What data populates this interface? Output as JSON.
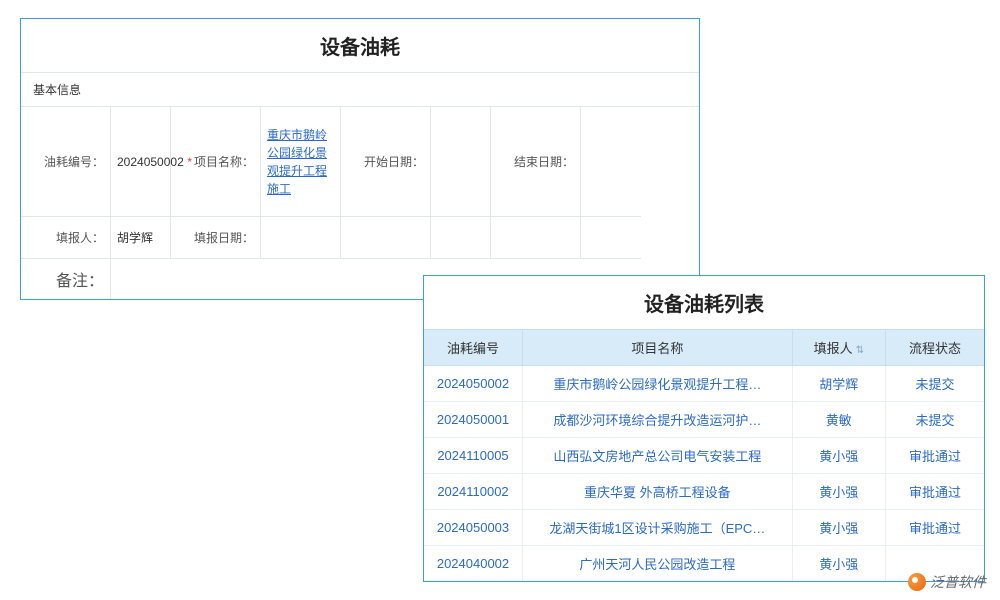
{
  "form": {
    "title": "设备油耗",
    "section_title": "基本信息",
    "fields": {
      "fuel_id_label": "油耗编号：",
      "fuel_id_value": "2024050002",
      "project_name_label": "项目名称：",
      "project_name_value": "重庆市鹅岭公园绿化景观提升工程施工",
      "start_date_label": "开始日期：",
      "start_date_value": "",
      "end_date_label": "结束日期：",
      "end_date_value": "",
      "reporter_label": "填报人：",
      "reporter_value": "胡学辉",
      "report_date_label": "填报日期：",
      "report_date_value": "",
      "remark_label": "备注："
    }
  },
  "list": {
    "title": "设备油耗列表",
    "columns": {
      "id": "油耗编号",
      "name": "项目名称",
      "reporter": "填报人",
      "status": "流程状态"
    },
    "rows": [
      {
        "id": "2024050002",
        "name": "重庆市鹅岭公园绿化景观提升工程…",
        "reporter": "胡学辉",
        "status": "未提交",
        "status_type": "pending"
      },
      {
        "id": "2024050001",
        "name": "成都沙河环境综合提升改造运河护…",
        "reporter": "黄敏",
        "status": "未提交",
        "status_type": "pending"
      },
      {
        "id": "2024110005",
        "name": "山西弘文房地产总公司电气安装工程",
        "reporter": "黄小强",
        "status": "审批通过",
        "status_type": "approved"
      },
      {
        "id": "2024110002",
        "name": "重庆华夏 外高桥工程设备",
        "reporter": "黄小强",
        "status": "审批通过",
        "status_type": "approved"
      },
      {
        "id": "2024050003",
        "name": "龙湖天街城1区设计采购施工（EPC…",
        "reporter": "黄小强",
        "status": "审批通过",
        "status_type": "approved"
      },
      {
        "id": "2024040002",
        "name": "广州天河人民公园改造工程",
        "reporter": "黄小强",
        "status": "",
        "status_type": ""
      }
    ]
  },
  "watermark": {
    "text": "泛普软件",
    "url": "www.fanpusoft.com"
  },
  "colors": {
    "panel_border": "#3b9de8",
    "grid_border": "#dfe6ec",
    "header_bg": "#d8ebf9",
    "link": "#2a6ac7",
    "status_pending": "#7b3fc9",
    "status_approved": "#2e9b3f"
  }
}
